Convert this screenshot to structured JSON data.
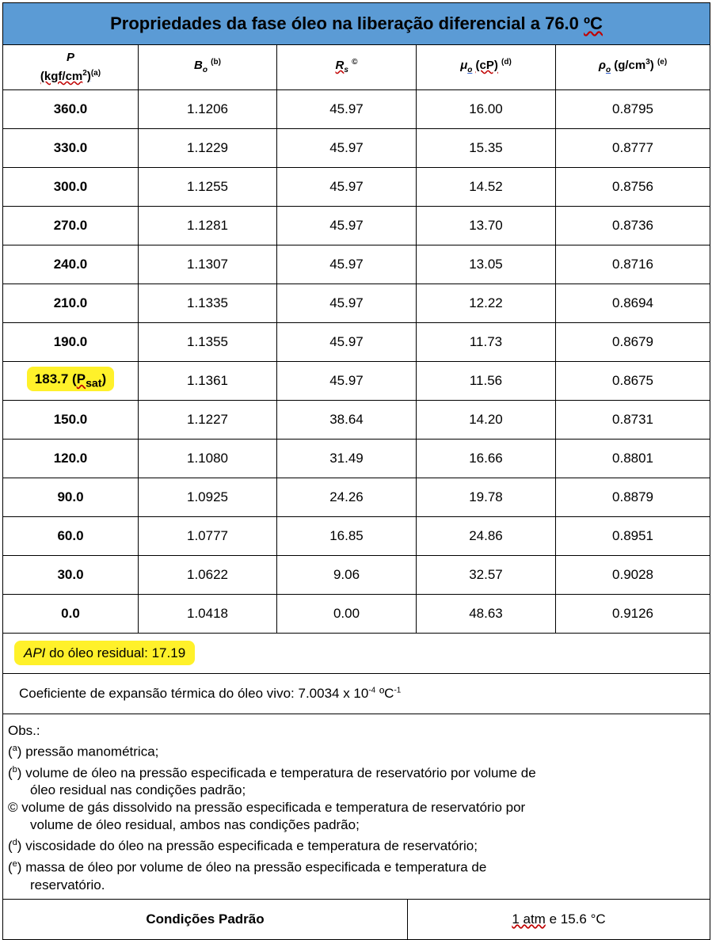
{
  "title_prefix": "Propriedades da fase óleo na liberação diferencial a 76.0 ",
  "title_unit": "ºC",
  "headers": {
    "p_symbol": "P",
    "p_unit": "(kgf/cm",
    "p_unit_exp": "2",
    "p_unit_close": ")",
    "p_note": "(a)",
    "bo_symbol": "B",
    "bo_sub": "o",
    "bo_note": "(b)",
    "rs_symbol": "R",
    "rs_sub": "s",
    "rs_note": "©",
    "mu_symbol": "μ",
    "mu_sub": "o",
    "mu_unit": "(cP)",
    "mu_note": "(d)",
    "rho_symbol": "ρ",
    "rho_sub": "o",
    "rho_unit": "(g/cm",
    "rho_unit_exp": "3",
    "rho_unit_close": ")",
    "rho_note": "(e)"
  },
  "rows": [
    {
      "p": "360.0",
      "bo": "1.1206",
      "rs": "45.97",
      "mu": "16.00",
      "rho": "0.8795"
    },
    {
      "p": "330.0",
      "bo": "1.1229",
      "rs": "45.97",
      "mu": "15.35",
      "rho": "0.8777"
    },
    {
      "p": "300.0",
      "bo": "1.1255",
      "rs": "45.97",
      "mu": "14.52",
      "rho": "0.8756"
    },
    {
      "p": "270.0",
      "bo": "1.1281",
      "rs": "45.97",
      "mu": "13.70",
      "rho": "0.8736"
    },
    {
      "p": "240.0",
      "bo": "1.1307",
      "rs": "45.97",
      "mu": "13.05",
      "rho": "0.8716"
    },
    {
      "p": "210.0",
      "bo": "1.1335",
      "rs": "45.97",
      "mu": "12.22",
      "rho": "0.8694"
    },
    {
      "p": "190.0",
      "bo": "1.1355",
      "rs": "45.97",
      "mu": "11.73",
      "rho": "0.8679"
    },
    {
      "p": "183.7 (",
      "p_sym": "P",
      "p_sub": "sat",
      "p_close": ")",
      "bo": "1.1361",
      "rs": "45.97",
      "mu": "11.56",
      "rho": "0.8675"
    },
    {
      "p": "150.0",
      "bo": "1.1227",
      "rs": "38.64",
      "mu": "14.20",
      "rho": "0.8731"
    },
    {
      "p": "120.0",
      "bo": "1.1080",
      "rs": "31.49",
      "mu": "16.66",
      "rho": "0.8801"
    },
    {
      "p": "90.0",
      "bo": "1.0925",
      "rs": "24.26",
      "mu": "19.78",
      "rho": "0.8879"
    },
    {
      "p": "60.0",
      "bo": "1.0777",
      "rs": "16.85",
      "mu": "24.86",
      "rho": "0.8951"
    },
    {
      "p": "30.0",
      "bo": "1.0622",
      "rs": "9.06",
      "mu": "32.57",
      "rho": "0.9028"
    },
    {
      "p": "0.0",
      "bo": "1.0418",
      "rs": "0.00",
      "mu": "48.63",
      "rho": "0.9126"
    }
  ],
  "api": {
    "label_italic": "API",
    "label_rest": " do óleo residual: 17.19"
  },
  "coef": {
    "text": "Coeficiente de expansão térmica do óleo vivo: 7.0034 x 10",
    "exp1": "-4",
    "unit": " ºC",
    "exp2": "-1"
  },
  "obs": {
    "title": "Obs.:",
    "a_mark": "a",
    "a_text": " pressão manométrica;",
    "b_mark": "b",
    "b_text1": " volume de óleo na pressão especificada e temperatura de reservatório por volume de",
    "b_text2": "óleo residual nas condições padrão;",
    "c_text1": "© volume de gás dissolvido na pressão especificada e temperatura de reservatório por",
    "c_text2": "volume de óleo residual, ambos nas condições padrão;",
    "d_mark": "d",
    "d_text": " viscosidade do óleo na pressão especificada e temperatura de reservatório;",
    "e_mark": "e",
    "e_text1": " massa de óleo por volume de óleo na pressão especificada e temperatura de",
    "e_text2": "reservatório."
  },
  "conditions": {
    "label": "Condições Padrão",
    "value_atm": "1 atm",
    "value_rest": " e 15.6 °C"
  },
  "colors": {
    "title_bg": "#5b9bd5",
    "highlight": "#fff12a"
  }
}
